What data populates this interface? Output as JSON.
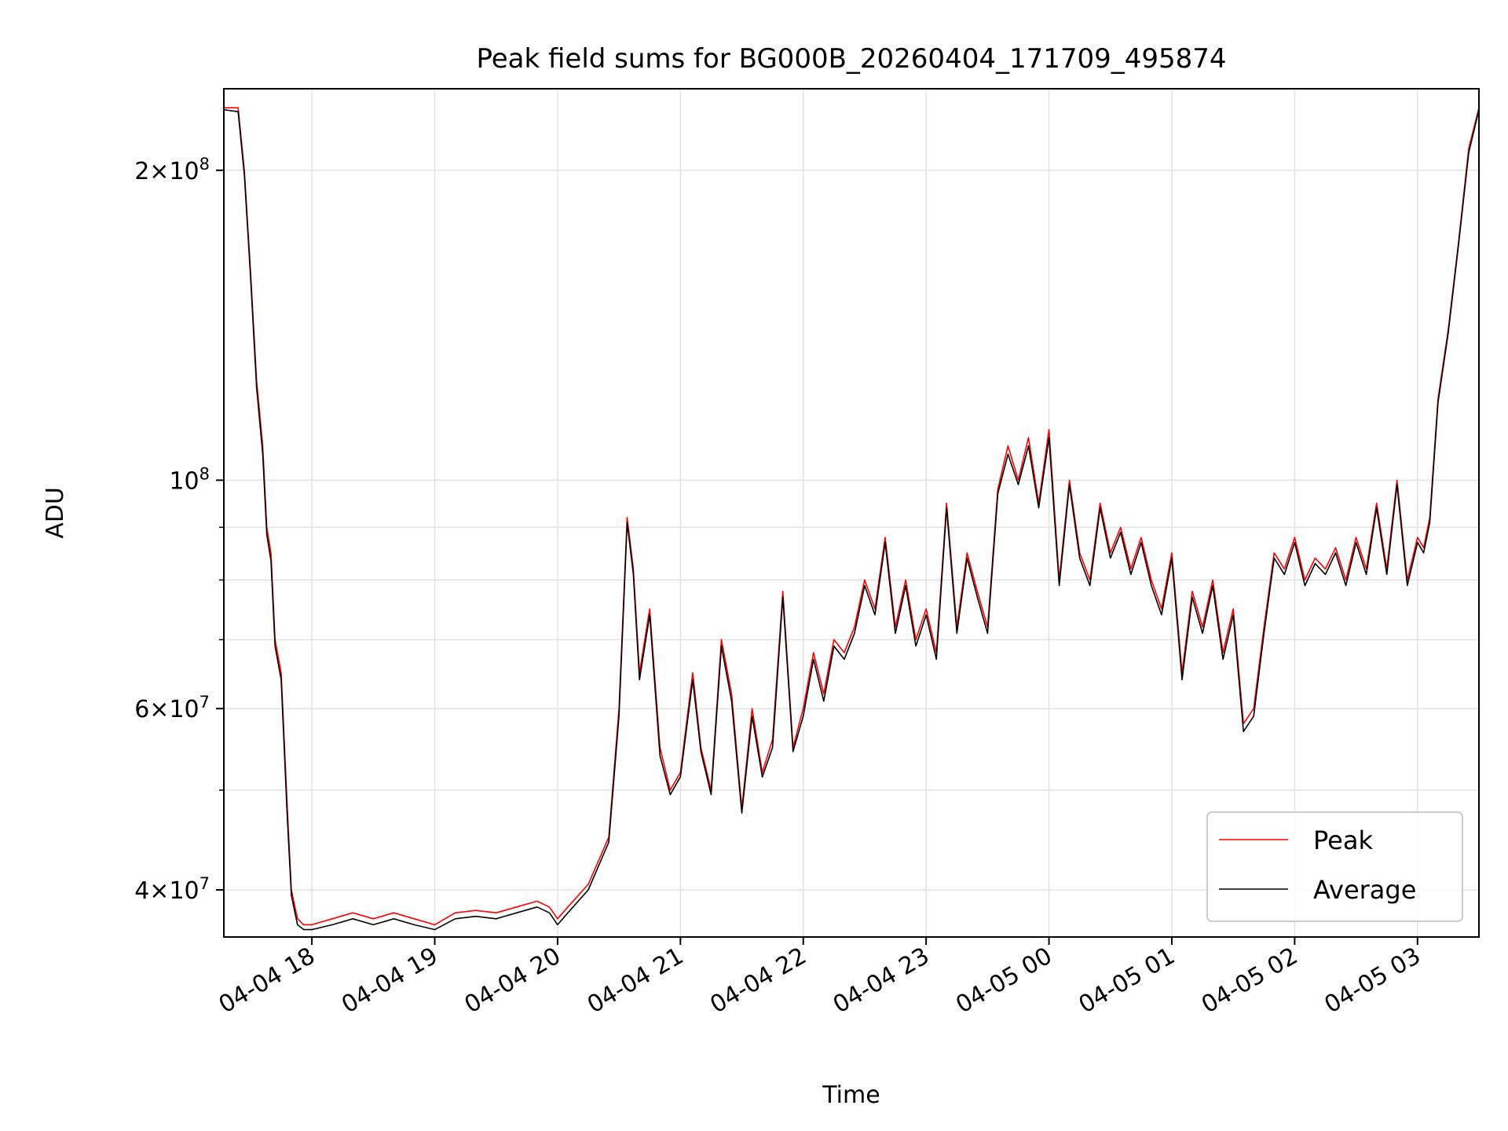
{
  "chart_data": {
    "type": "line",
    "title": "Peak field sums for BG000B_20260404_171709_495874",
    "xlabel": "Time",
    "ylabel": "ADU",
    "yscale": "log",
    "grid": true,
    "legend_position": "lower-right",
    "x_tick_labels": [
      "04-04 18",
      "04-04 19",
      "04-04 20",
      "04-04 21",
      "04-04 22",
      "04-04 23",
      "04-05 00",
      "04-05 01",
      "04-05 02",
      "04-05 03"
    ],
    "x_ticks": [
      "2026-04-04 18:00",
      "2026-04-04 19:00",
      "2026-04-04 20:00",
      "2026-04-04 21:00",
      "2026-04-04 22:00",
      "2026-04-04 23:00",
      "2026-04-05 00:00",
      "2026-04-05 01:00",
      "2026-04-05 02:00",
      "2026-04-05 03:00"
    ],
    "x_range": [
      "2026-04-04 17:17",
      "2026-04-05 03:30"
    ],
    "y_ticks": [
      {
        "value": 40000000,
        "base": "4×10",
        "exp": "7"
      },
      {
        "value": 60000000,
        "base": "6×10",
        "exp": "7"
      },
      {
        "value": 100000000,
        "base": "10",
        "exp": "8"
      },
      {
        "value": 200000000,
        "base": "2×10",
        "exp": "8"
      }
    ],
    "y_range": [
      36000000,
      240000000
    ],
    "series": [
      {
        "name": "Peak",
        "color": "#ff0000",
        "x": [
          "2026-04-04 17:17",
          "2026-04-04 17:24",
          "2026-04-04 17:27",
          "2026-04-04 17:30",
          "2026-04-04 17:33",
          "2026-04-04 17:36",
          "2026-04-04 17:38",
          "2026-04-04 17:40",
          "2026-04-04 17:42",
          "2026-04-04 17:45",
          "2026-04-04 17:48",
          "2026-04-04 17:50",
          "2026-04-04 17:53",
          "2026-04-04 17:56",
          "2026-04-04 18:00",
          "2026-04-04 18:10",
          "2026-04-04 18:20",
          "2026-04-04 18:30",
          "2026-04-04 18:40",
          "2026-04-04 18:50",
          "2026-04-04 19:00",
          "2026-04-04 19:10",
          "2026-04-04 19:20",
          "2026-04-04 19:30",
          "2026-04-04 19:40",
          "2026-04-04 19:50",
          "2026-04-04 19:56",
          "2026-04-04 20:00",
          "2026-04-04 20:05",
          "2026-04-04 20:15",
          "2026-04-04 20:25",
          "2026-04-04 20:30",
          "2026-04-04 20:34",
          "2026-04-04 20:37",
          "2026-04-04 20:40",
          "2026-04-04 20:45",
          "2026-04-04 20:50",
          "2026-04-04 20:55",
          "2026-04-04 21:00",
          "2026-04-04 21:06",
          "2026-04-04 21:10",
          "2026-04-04 21:15",
          "2026-04-04 21:20",
          "2026-04-04 21:25",
          "2026-04-04 21:30",
          "2026-04-04 21:35",
          "2026-04-04 21:40",
          "2026-04-04 21:45",
          "2026-04-04 21:50",
          "2026-04-04 21:55",
          "2026-04-04 22:00",
          "2026-04-04 22:05",
          "2026-04-04 22:10",
          "2026-04-04 22:15",
          "2026-04-04 22:20",
          "2026-04-04 22:25",
          "2026-04-04 22:30",
          "2026-04-04 22:35",
          "2026-04-04 22:40",
          "2026-04-04 22:45",
          "2026-04-04 22:50",
          "2026-04-04 22:55",
          "2026-04-04 23:00",
          "2026-04-04 23:05",
          "2026-04-04 23:10",
          "2026-04-04 23:15",
          "2026-04-04 23:20",
          "2026-04-04 23:25",
          "2026-04-04 23:30",
          "2026-04-04 23:35",
          "2026-04-04 23:40",
          "2026-04-04 23:45",
          "2026-04-04 23:50",
          "2026-04-04 23:55",
          "2026-04-05 00:00",
          "2026-04-05 00:05",
          "2026-04-05 00:10",
          "2026-04-05 00:15",
          "2026-04-05 00:20",
          "2026-04-05 00:25",
          "2026-04-05 00:30",
          "2026-04-05 00:35",
          "2026-04-05 00:40",
          "2026-04-05 00:45",
          "2026-04-05 00:50",
          "2026-04-05 00:55",
          "2026-04-05 01:00",
          "2026-04-05 01:05",
          "2026-04-05 01:10",
          "2026-04-05 01:15",
          "2026-04-05 01:20",
          "2026-04-05 01:25",
          "2026-04-05 01:30",
          "2026-04-05 01:35",
          "2026-04-05 01:40",
          "2026-04-05 01:45",
          "2026-04-05 01:50",
          "2026-04-05 01:55",
          "2026-04-05 02:00",
          "2026-04-05 02:05",
          "2026-04-05 02:10",
          "2026-04-05 02:15",
          "2026-04-05 02:20",
          "2026-04-05 02:25",
          "2026-04-05 02:30",
          "2026-04-05 02:35",
          "2026-04-05 02:40",
          "2026-04-05 02:45",
          "2026-04-05 02:50",
          "2026-04-05 02:55",
          "2026-04-05 03:00",
          "2026-04-05 03:03",
          "2026-04-05 03:06",
          "2026-04-05 03:10",
          "2026-04-05 03:15",
          "2026-04-05 03:20",
          "2026-04-05 03:25",
          "2026-04-05 03:30"
        ],
        "y": [
          230000000,
          230000000,
          200000000,
          160000000,
          125000000,
          108000000,
          90000000,
          85000000,
          70000000,
          65000000,
          48000000,
          40000000,
          37500000,
          37000000,
          37000000,
          37500000,
          38000000,
          37500000,
          38000000,
          37500000,
          37000000,
          38000000,
          38200000,
          38000000,
          38500000,
          39000000,
          38500000,
          37500000,
          38500000,
          40500000,
          45000000,
          60000000,
          92000000,
          82000000,
          65000000,
          75000000,
          55000000,
          50000000,
          52000000,
          65000000,
          55000000,
          50000000,
          70000000,
          62000000,
          48000000,
          60000000,
          52000000,
          56000000,
          78000000,
          55000000,
          60000000,
          68000000,
          62000000,
          70000000,
          68000000,
          72000000,
          80000000,
          75000000,
          88000000,
          72000000,
          80000000,
          70000000,
          75000000,
          68000000,
          95000000,
          72000000,
          85000000,
          78000000,
          72000000,
          98000000,
          108000000,
          100000000,
          110000000,
          95000000,
          112000000,
          80000000,
          100000000,
          85000000,
          80000000,
          95000000,
          85000000,
          90000000,
          82000000,
          88000000,
          80000000,
          75000000,
          85000000,
          65000000,
          78000000,
          72000000,
          80000000,
          68000000,
          75000000,
          58000000,
          60000000,
          72000000,
          85000000,
          82000000,
          88000000,
          80000000,
          84000000,
          82000000,
          86000000,
          80000000,
          88000000,
          82000000,
          95000000,
          82000000,
          100000000,
          80000000,
          88000000,
          86000000,
          92000000,
          120000000,
          140000000,
          170000000,
          210000000,
          230000000
        ]
      },
      {
        "name": "Average",
        "color": "#000000",
        "x": [
          "2026-04-04 17:17",
          "2026-04-04 17:24",
          "2026-04-04 17:27",
          "2026-04-04 17:30",
          "2026-04-04 17:33",
          "2026-04-04 17:36",
          "2026-04-04 17:38",
          "2026-04-04 17:40",
          "2026-04-04 17:42",
          "2026-04-04 17:45",
          "2026-04-04 17:48",
          "2026-04-04 17:50",
          "2026-04-04 17:53",
          "2026-04-04 17:56",
          "2026-04-04 18:00",
          "2026-04-04 18:10",
          "2026-04-04 18:20",
          "2026-04-04 18:30",
          "2026-04-04 18:40",
          "2026-04-04 18:50",
          "2026-04-04 19:00",
          "2026-04-04 19:10",
          "2026-04-04 19:20",
          "2026-04-04 19:30",
          "2026-04-04 19:40",
          "2026-04-04 19:50",
          "2026-04-04 19:56",
          "2026-04-04 20:00",
          "2026-04-04 20:05",
          "2026-04-04 20:15",
          "2026-04-04 20:25",
          "2026-04-04 20:30",
          "2026-04-04 20:34",
          "2026-04-04 20:37",
          "2026-04-04 20:40",
          "2026-04-04 20:45",
          "2026-04-04 20:50",
          "2026-04-04 20:55",
          "2026-04-04 21:00",
          "2026-04-04 21:06",
          "2026-04-04 21:10",
          "2026-04-04 21:15",
          "2026-04-04 21:20",
          "2026-04-04 21:25",
          "2026-04-04 21:30",
          "2026-04-04 21:35",
          "2026-04-04 21:40",
          "2026-04-04 21:45",
          "2026-04-04 21:50",
          "2026-04-04 21:55",
          "2026-04-04 22:00",
          "2026-04-04 22:05",
          "2026-04-04 22:10",
          "2026-04-04 22:15",
          "2026-04-04 22:20",
          "2026-04-04 22:25",
          "2026-04-04 22:30",
          "2026-04-04 22:35",
          "2026-04-04 22:40",
          "2026-04-04 22:45",
          "2026-04-04 22:50",
          "2026-04-04 22:55",
          "2026-04-04 23:00",
          "2026-04-04 23:05",
          "2026-04-04 23:10",
          "2026-04-04 23:15",
          "2026-04-04 23:20",
          "2026-04-04 23:25",
          "2026-04-04 23:30",
          "2026-04-04 23:35",
          "2026-04-04 23:40",
          "2026-04-04 23:45",
          "2026-04-04 23:50",
          "2026-04-04 23:55",
          "2026-04-05 00:00",
          "2026-04-05 00:05",
          "2026-04-05 00:10",
          "2026-04-05 00:15",
          "2026-04-05 00:20",
          "2026-04-05 00:25",
          "2026-04-05 00:30",
          "2026-04-05 00:35",
          "2026-04-05 00:40",
          "2026-04-05 00:45",
          "2026-04-05 00:50",
          "2026-04-05 00:55",
          "2026-04-05 01:00",
          "2026-04-05 01:05",
          "2026-04-05 01:10",
          "2026-04-05 01:15",
          "2026-04-05 01:20",
          "2026-04-05 01:25",
          "2026-04-05 01:30",
          "2026-04-05 01:35",
          "2026-04-05 01:40",
          "2026-04-05 01:45",
          "2026-04-05 01:50",
          "2026-04-05 01:55",
          "2026-04-05 02:00",
          "2026-04-05 02:05",
          "2026-04-05 02:10",
          "2026-04-05 02:15",
          "2026-04-05 02:20",
          "2026-04-05 02:25",
          "2026-04-05 02:30",
          "2026-04-05 02:35",
          "2026-04-05 02:40",
          "2026-04-05 02:45",
          "2026-04-05 02:50",
          "2026-04-05 02:55",
          "2026-04-05 03:00",
          "2026-04-05 03:03",
          "2026-04-05 03:06",
          "2026-04-05 03:10",
          "2026-04-05 03:15",
          "2026-04-05 03:20",
          "2026-04-05 03:25",
          "2026-04-05 03:30"
        ],
        "y": [
          229000000,
          228000000,
          198000000,
          158000000,
          123000000,
          106000000,
          88500000,
          83500000,
          69000000,
          64000000,
          47000000,
          39500000,
          37000000,
          36600000,
          36600000,
          37000000,
          37500000,
          37000000,
          37500000,
          37000000,
          36600000,
          37500000,
          37700000,
          37500000,
          38000000,
          38500000,
          38000000,
          37000000,
          38000000,
          40000000,
          44500000,
          59000000,
          91000000,
          81000000,
          64000000,
          74000000,
          54000000,
          49500000,
          51500000,
          64000000,
          54500000,
          49500000,
          69000000,
          61000000,
          47500000,
          59000000,
          51500000,
          55000000,
          77000000,
          54500000,
          59000000,
          67000000,
          61000000,
          69000000,
          67000000,
          71000000,
          79000000,
          74000000,
          87000000,
          71000000,
          79000000,
          69000000,
          74000000,
          67000000,
          94000000,
          71000000,
          84000000,
          77000000,
          71000000,
          97000000,
          106000000,
          99000000,
          108000000,
          94000000,
          110000000,
          79000000,
          99000000,
          84000000,
          79000000,
          94000000,
          84000000,
          89000000,
          81000000,
          87000000,
          79000000,
          74000000,
          84000000,
          64000000,
          77000000,
          71000000,
          79000000,
          67000000,
          74000000,
          57000000,
          59000000,
          71000000,
          84000000,
          81000000,
          87000000,
          79000000,
          83000000,
          81000000,
          85000000,
          79000000,
          87000000,
          81000000,
          94000000,
          81000000,
          99000000,
          79000000,
          87000000,
          85000000,
          91000000,
          119000000,
          139000000,
          169000000,
          208000000,
          229000000
        ]
      }
    ]
  }
}
